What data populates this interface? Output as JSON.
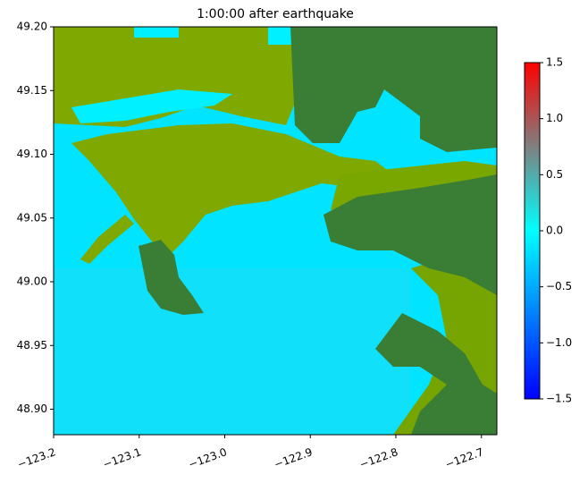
{
  "chart_data": {
    "type": "image",
    "title": "1:00:00 after earthquake",
    "xlim": [
      -123.2,
      -122.682
    ],
    "ylim": [
      48.88,
      49.2
    ],
    "xticks": [
      {
        "value": -123.2,
        "label": "−123.2"
      },
      {
        "value": -123.1,
        "label": "−123.1"
      },
      {
        "value": -123.0,
        "label": "−123.0"
      },
      {
        "value": -122.9,
        "label": "−122.9"
      },
      {
        "value": -122.8,
        "label": "−122.8"
      },
      {
        "value": -122.7,
        "label": "−122.7"
      }
    ],
    "yticks": [
      {
        "value": 48.9,
        "label": "48.90"
      },
      {
        "value": 48.95,
        "label": "48.95"
      },
      {
        "value": 49.0,
        "label": "49.00"
      },
      {
        "value": 49.05,
        "label": "49.05"
      },
      {
        "value": 49.1,
        "label": "49.10"
      },
      {
        "value": 49.15,
        "label": "49.15"
      },
      {
        "value": 49.2,
        "label": "49.20"
      }
    ],
    "colorbar": {
      "lim": [
        -1.5,
        1.5
      ],
      "ticks": [
        {
          "value": -1.5,
          "label": "−1.5"
        },
        {
          "value": -1.0,
          "label": "−1.0"
        },
        {
          "value": -0.5,
          "label": "−0.5"
        },
        {
          "value": 0.0,
          "label": "0.0"
        },
        0.5,
        {
          "value": 1.0,
          "label": "1.0"
        },
        1.5
      ],
      "colors": [
        "#0000ff",
        "#00ffff",
        "#ff0000"
      ]
    }
  }
}
